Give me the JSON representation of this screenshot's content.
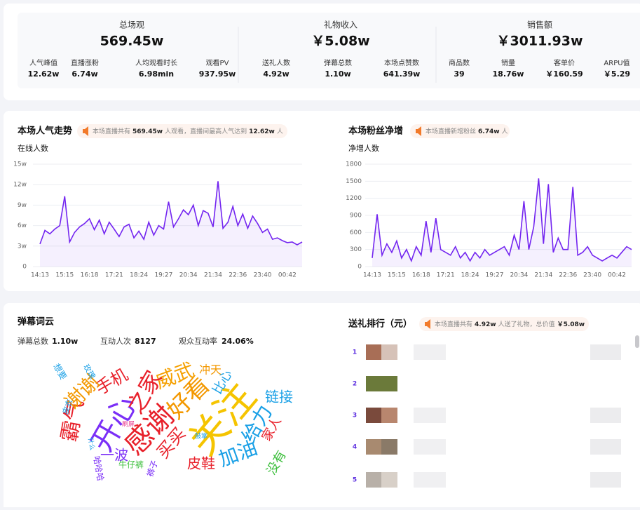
{
  "stats": [
    {
      "title": "总场观",
      "value": "569.45w",
      "items": [
        {
          "label": "人气峰值",
          "value": "12.62w"
        },
        {
          "label": "直播涨粉",
          "value": "6.74w"
        },
        {
          "label": "人均观看时长",
          "value": "6.98min"
        },
        {
          "label": "观看PV",
          "value": "937.95w"
        }
      ]
    },
    {
      "title": "礼物收入",
      "value": "￥5.08w",
      "items": [
        {
          "label": "送礼人数",
          "value": "4.92w"
        },
        {
          "label": "弹幕总数",
          "value": "1.10w"
        },
        {
          "label": "本场点赞数",
          "value": "641.39w"
        }
      ]
    },
    {
      "title": "销售额",
      "value": "￥3011.93w",
      "items": [
        {
          "label": "商品数",
          "value": "39"
        },
        {
          "label": "销量",
          "value": "18.76w"
        },
        {
          "label": "客单价",
          "value": "￥160.59"
        },
        {
          "label": "ARPU值",
          "value": "￥5.29"
        }
      ]
    }
  ],
  "chart_data": [
    {
      "type": "line",
      "title": "本场人气走势",
      "note": [
        "本场直播共有",
        "569.45w",
        "人观看，直播间最高人气达到",
        "12.62w",
        "人"
      ],
      "ylabel": "在线人数",
      "color": "#7325f0",
      "categories": [
        "14:13",
        null,
        null,
        null,
        null,
        "15:15",
        null,
        null,
        null,
        null,
        "16:18",
        null,
        null,
        null,
        null,
        "17:21",
        null,
        null,
        null,
        null,
        "18:24",
        null,
        null,
        null,
        null,
        "19:27",
        null,
        null,
        null,
        null,
        "20:34",
        null,
        null,
        null,
        null,
        "21:34",
        null,
        null,
        null,
        null,
        "22:36",
        null,
        null,
        null,
        null,
        "23:40",
        null,
        null,
        null,
        null,
        "00:42",
        null,
        null,
        null
      ],
      "values": [
        3.3,
        5.3,
        4.8,
        5.5,
        6.0,
        10.3,
        3.6,
        5.0,
        5.8,
        6.3,
        7.0,
        5.4,
        6.8,
        4.8,
        6.5,
        5.5,
        4.4,
        5.8,
        6.2,
        4.2,
        5.2,
        4.0,
        6.5,
        4.6,
        6.0,
        5.5,
        9.5,
        5.8,
        7.0,
        8.3,
        7.6,
        9.0,
        6.0,
        8.2,
        7.8,
        5.8,
        12.5,
        5.6,
        6.5,
        8.8,
        6.0,
        7.7,
        5.6,
        7.4,
        6.3,
        5.0,
        5.5,
        4.0,
        4.2,
        3.8,
        3.5,
        3.6,
        3.2,
        3.6
      ],
      "ylim": [
        0,
        15
      ],
      "yticks": [
        0,
        {
          "value": 3,
          "label": "3w"
        },
        {
          "value": 6,
          "label": "6w"
        },
        {
          "value": 9,
          "label": "9w"
        },
        {
          "value": 12,
          "label": "12w"
        },
        {
          "value": 15,
          "label": "15w"
        }
      ],
      "grid": true
    },
    {
      "type": "line",
      "title": "本场粉丝净增",
      "note": [
        "本场直播新增粉丝",
        "6.74w",
        "人"
      ],
      "ylabel": "净增人数",
      "color": "#7325f0",
      "categories": [
        "14:13",
        null,
        null,
        null,
        null,
        "15:15",
        null,
        null,
        null,
        null,
        "16:18",
        null,
        null,
        null,
        null,
        "17:21",
        null,
        null,
        null,
        null,
        "18:24",
        null,
        null,
        null,
        null,
        "19:27",
        null,
        null,
        null,
        null,
        "20:34",
        null,
        null,
        null,
        null,
        "21:34",
        null,
        null,
        null,
        null,
        "22:36",
        null,
        null,
        null,
        null,
        "23:40",
        null,
        null,
        null,
        null,
        "00:42",
        null,
        null,
        null
      ],
      "values": [
        150,
        920,
        200,
        400,
        250,
        450,
        150,
        300,
        100,
        350,
        200,
        800,
        250,
        850,
        300,
        250,
        200,
        350,
        150,
        250,
        100,
        250,
        150,
        300,
        200,
        250,
        300,
        350,
        200,
        550,
        300,
        1150,
        300,
        700,
        1550,
        400,
        1450,
        250,
        500,
        300,
        300,
        1400,
        200,
        250,
        350,
        200,
        150,
        100,
        150,
        200,
        150,
        250,
        350,
        300
      ],
      "ylim": [
        0,
        1800
      ],
      "yticks": [
        0,
        300,
        600,
        900,
        1200,
        1500,
        1800
      ],
      "grid": true
    }
  ],
  "cloud": {
    "title": "弹幕词云",
    "stats": [
      {
        "label": "弹幕总数",
        "value": "1.10w"
      },
      {
        "label": "互动人次",
        "value": "8127"
      },
      {
        "label": "观众互动率",
        "value": "24.06%"
      }
    ],
    "words": [
      {
        "text": "开心",
        "color": "#7b2ff7"
      },
      {
        "text": "感谢",
        "color": "#e8202a"
      },
      {
        "text": "关注",
        "color": "#f5c400"
      },
      {
        "text": "好看",
        "color": "#f39800"
      },
      {
        "text": "威武",
        "color": "#f5a000"
      },
      {
        "text": "之家",
        "color": "#e8202a"
      },
      {
        "text": "手机",
        "color": "#e8202a"
      },
      {
        "text": "霸气",
        "color": "#e8202a"
      },
      {
        "text": "谢谢",
        "color": "#f39800"
      },
      {
        "text": "一波",
        "color": "#7b2ff7"
      },
      {
        "text": "加油",
        "color": "#1aa0e6"
      },
      {
        "text": "给力",
        "color": "#1aa0e6"
      },
      {
        "text": "买买",
        "color": "#e8202a"
      },
      {
        "text": "皮鞋",
        "color": "#e8202a"
      },
      {
        "text": "链接",
        "color": "#1aa0e6"
      },
      {
        "text": "比心",
        "color": "#1aa0e6"
      },
      {
        "text": "冲天",
        "color": "#f39800"
      },
      {
        "text": "家人",
        "color": "#e8202a"
      },
      {
        "text": "没有",
        "color": "#3dbf3d"
      },
      {
        "text": "牛仔裤",
        "color": "#3dbf3d"
      },
      {
        "text": "裤子",
        "color": "#7b2ff7"
      },
      {
        "text": "哈哈哈",
        "color": "#7b2ff7"
      },
      {
        "text": "想要",
        "color": "#1aa0e6"
      },
      {
        "text": "玫瑰",
        "color": "#1aa0e6"
      },
      {
        "text": "刷屏",
        "color": "#e83a8e"
      },
      {
        "text": "鼓掌",
        "color": "#1aa0e6"
      },
      {
        "text": "皮衣",
        "color": "#1aa0e6"
      },
      {
        "text": "什么",
        "color": "#1aa0e6"
      }
    ]
  },
  "ranking": {
    "title": "送礼排行（元）",
    "note": [
      "本场直播共有",
      "4.92w",
      "人送了礼物，总价值",
      "￥5.08w"
    ],
    "ranks": [
      "1",
      "2",
      "3",
      "4",
      "5"
    ]
  }
}
